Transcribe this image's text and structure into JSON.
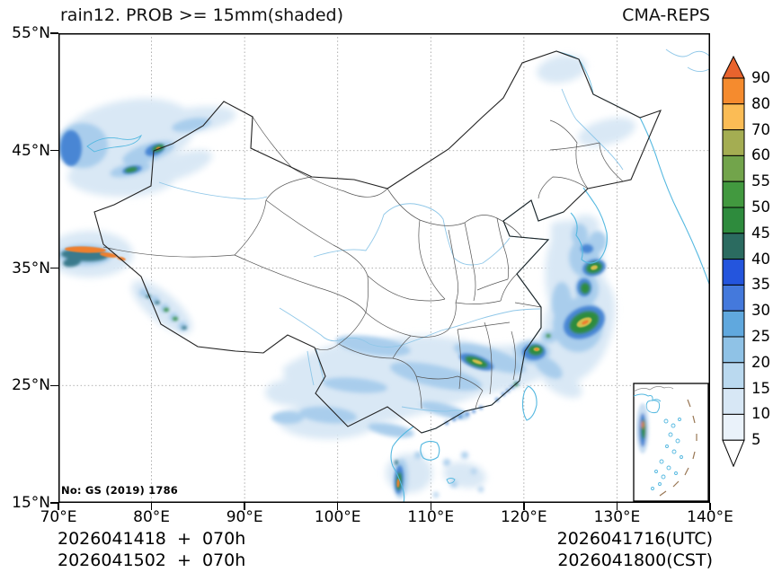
{
  "header": {
    "title": "rain12. PROB >= 15mm(shaded)",
    "model": "CMA-REPS"
  },
  "axes": {
    "lat_ticks": [
      "55°N",
      "45°N",
      "35°N",
      "25°N",
      "15°N"
    ],
    "lon_ticks": [
      "70°E",
      "80°E",
      "90°E",
      "100°E",
      "110°E",
      "120°E",
      "130°E",
      "140°E"
    ]
  },
  "map": {
    "license": "No: GS (2019) 1786"
  },
  "colorbar": {
    "values": [
      90,
      80,
      70,
      60,
      55,
      50,
      45,
      40,
      35,
      30,
      25,
      20,
      15,
      10,
      5
    ],
    "segment_colors_top_to_bottom": [
      "#f58b2e",
      "#fbbc55",
      "#a4ad52",
      "#72a44b",
      "#42993f",
      "#2e8b3d",
      "#2b6b60",
      "#2455dd",
      "#4479dc",
      "#60a8de",
      "#8fc2e6",
      "#bad9ef",
      "#d7e7f5",
      "#eaf2fa"
    ],
    "over_color": "#e8632d",
    "under_color": "#ffffff"
  },
  "footer": {
    "left_line1": "2026041418  +  070h",
    "left_line2": "2026041502  +  070h",
    "right_line1": "2026041716(UTC)",
    "right_line2": "2026041800(CST)"
  },
  "chart_data": {
    "type": "filled_contour_probability_map",
    "variable": "rain12. PROB >= 15mm",
    "units": "percent",
    "extent": {
      "lon": [
        70,
        140
      ],
      "lat": [
        15,
        55
      ]
    },
    "levels_percent": [
      5,
      10,
      15,
      20,
      25,
      30,
      35,
      40,
      45,
      50,
      55,
      60,
      70,
      80,
      90
    ],
    "legend_position": "right",
    "grid": "dotted 10-degree graticule",
    "systems": [
      {
        "name": "far-west-xinjiang-blob",
        "lon": 71.5,
        "lat": 45.0,
        "max_percent": 45
      },
      {
        "name": "tianshan-ili-cores",
        "lon": 80.5,
        "lat": 45.3,
        "max_percent": 80
      },
      {
        "name": "west-tibet-orange-band",
        "lon": 72.5,
        "lat": 36.5,
        "max_percent": 90
      },
      {
        "name": "himalaya-diagonal-streak",
        "lon": 80.0,
        "lat": 31.0,
        "max_percent": 50
      },
      {
        "name": "south-china-diffuse-band",
        "lon": 108.0,
        "lat": 26.0,
        "max_percent": 30
      },
      {
        "name": "jiangxi-core",
        "lon": 114.9,
        "lat": 27.0,
        "max_percent": 70
      },
      {
        "name": "fujian-coast-core",
        "lon": 121.2,
        "lat": 27.5,
        "max_percent": 85
      },
      {
        "name": "east-china-sea-core",
        "lon": 126.5,
        "lat": 30.3,
        "max_percent": 90
      },
      {
        "name": "yellow-sea-cores",
        "lon": 127.5,
        "lat": 34.8,
        "max_percent": 70
      },
      {
        "name": "northeast-pale-patches",
        "lon": 125.0,
        "lat": 50.0,
        "max_percent": 15
      },
      {
        "name": "korea-light-shading",
        "lon": 126.5,
        "lat": 38.5,
        "max_percent": 20
      },
      {
        "name": "vietnam-coast-streak",
        "lon": 108.5,
        "lat": 16.5,
        "max_percent": 80
      },
      {
        "name": "south-china-sea-inset-band",
        "lon": null,
        "lat": null,
        "max_percent": 80
      }
    ]
  }
}
